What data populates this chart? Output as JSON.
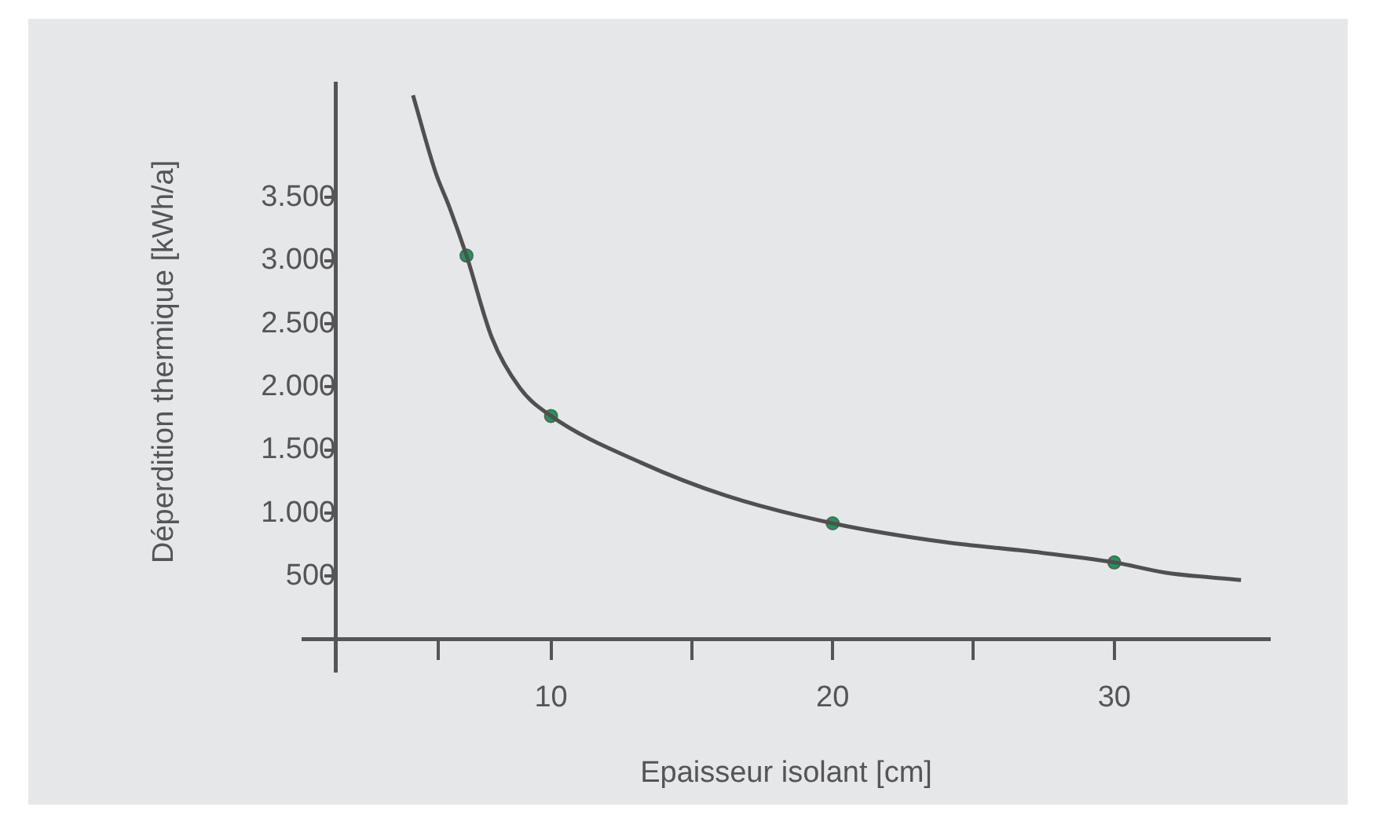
{
  "chart_data": {
    "type": "line",
    "xlabel": "Epaisseur isolant [cm]",
    "ylabel": "Déperdition thermique [kWh/a]",
    "xlim": [
      1.2,
      35.5
    ],
    "ylim": [
      -250,
      4400
    ],
    "xticks": [
      {
        "value": 6,
        "label": null
      },
      10,
      {
        "value": 15,
        "label": null
      },
      20,
      {
        "value": 25,
        "label": null
      },
      30
    ],
    "yticks": [
      {
        "value": 500,
        "label": "500"
      },
      {
        "value": 1000,
        "label": "1.000"
      },
      {
        "value": 1500,
        "label": "1.500"
      },
      {
        "value": 2000,
        "label": "2.000"
      },
      {
        "value": 2500,
        "label": "2.500"
      },
      {
        "value": 3000,
        "label": "3.000"
      },
      {
        "value": 3500,
        "label": "3.500"
      }
    ],
    "grid": false,
    "legend": false,
    "series": [
      {
        "color": "#505050",
        "marker": "none",
        "x": [
          5.1,
          5.9,
          6.4,
          7,
          7.9,
          8.9,
          10,
          13.2,
          16.2,
          20,
          24,
          26.9,
          30,
          31.8,
          34.5
        ],
        "values": [
          4310,
          3700,
          3420,
          3040,
          2390,
          1990,
          1770,
          1400,
          1140,
          920,
          770,
          700,
          610,
          530,
          470
        ]
      },
      {
        "type": "scatter",
        "color": "#1a9a5a",
        "marker": "circle",
        "x": [
          7,
          10,
          20,
          30
        ],
        "values": [
          3040,
          1770,
          920,
          610
        ]
      }
    ]
  }
}
